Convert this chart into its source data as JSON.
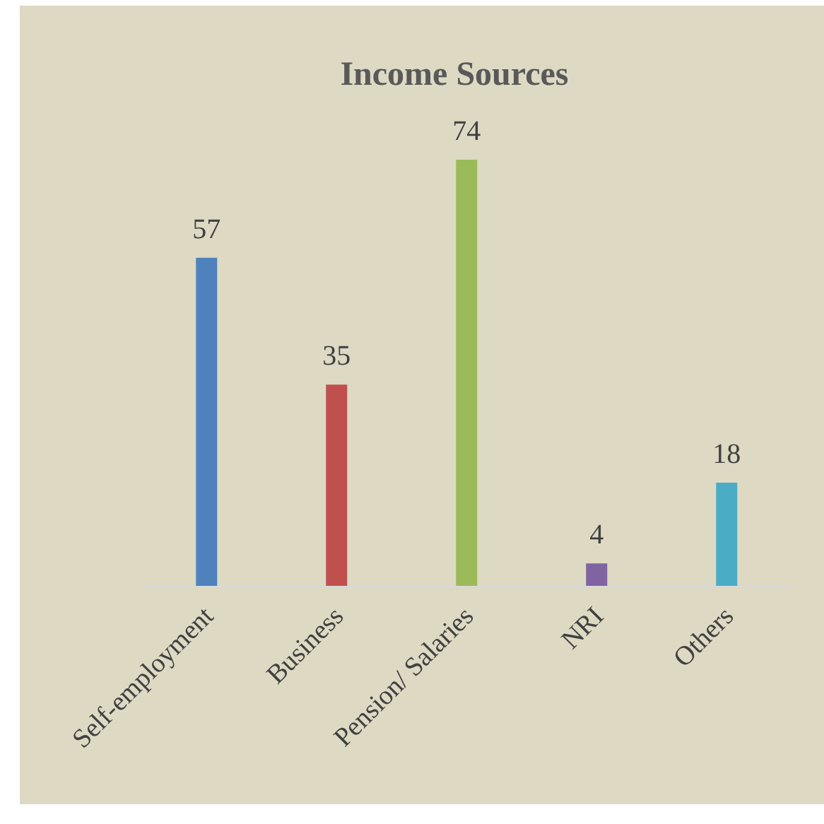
{
  "chart_data": {
    "type": "bar",
    "title": "Income Sources",
    "categories": [
      "Self-employment",
      "Business",
      "Pension/ Salaries",
      "NRI",
      "Others"
    ],
    "values": [
      57,
      35,
      74,
      4,
      18
    ],
    "colors": [
      "#4f81bd",
      "#c0504d",
      "#9bbb59",
      "#8064a2",
      "#4bacc6"
    ],
    "data_labels": true,
    "grid": false,
    "legend": false
  }
}
